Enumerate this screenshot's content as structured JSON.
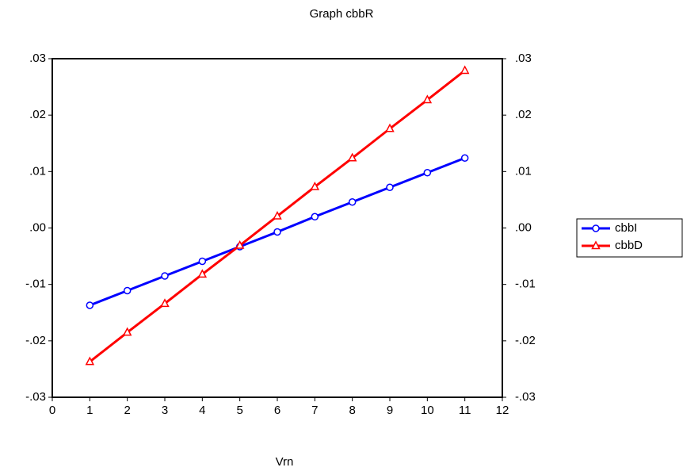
{
  "chart_data": {
    "type": "line",
    "title": "Graph cbbR",
    "x_label": "Vrn",
    "x": [
      1,
      2,
      3,
      4,
      5,
      6,
      7,
      8,
      9,
      10,
      11
    ],
    "series": [
      {
        "name": "cbbI",
        "color": "#0000ff",
        "marker": "circle",
        "values": [
          -0.0137,
          -0.0111,
          -0.0085,
          -0.0059,
          -0.0033,
          -0.0007,
          0.002,
          0.0046,
          0.0072,
          0.0098,
          0.0124
        ]
      },
      {
        "name": "cbbD",
        "color": "#ff0000",
        "marker": "triangle",
        "values": [
          -0.0237,
          -0.0185,
          -0.0134,
          -0.0082,
          -0.0031,
          0.0021,
          0.0073,
          0.0124,
          0.0176,
          0.0227,
          0.0279
        ]
      }
    ],
    "xlim": [
      0,
      12
    ],
    "xticks": [
      0,
      1,
      2,
      3,
      4,
      5,
      6,
      7,
      8,
      9,
      10,
      11,
      12
    ],
    "ylim": [
      -0.03,
      0.03
    ],
    "yticks": [
      {
        "value": 0.03,
        "label": ".03"
      },
      {
        "value": 0.02,
        "label": ".02"
      },
      {
        "value": 0.01,
        "label": ".01"
      },
      {
        "value": 0,
        "label": ".00"
      },
      {
        "value": -0.01,
        "label": "-.01"
      },
      {
        "value": -0.02,
        "label": "-.02"
      },
      {
        "value": -0.03,
        "label": "-.03"
      }
    ],
    "y2lim": [
      -0.03,
      0.03
    ],
    "y2ticks": [
      {
        "value": 0.03,
        "label": ".03"
      },
      {
        "value": 0.02,
        "label": ".02"
      },
      {
        "value": 0.01,
        "label": ".01"
      },
      {
        "value": 0,
        "label": ".00"
      },
      {
        "value": -0.01,
        "label": "-.01"
      },
      {
        "value": -0.02,
        "label": "-.02"
      },
      {
        "value": -0.03,
        "label": "-.03"
      }
    ],
    "legend": "right"
  }
}
